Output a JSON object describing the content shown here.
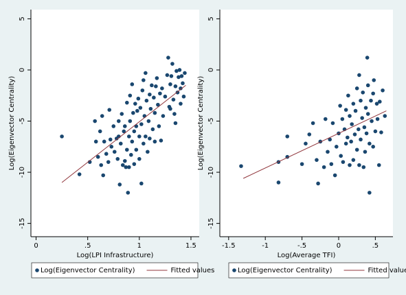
{
  "chart_data": [
    {
      "type": "scatter",
      "xlabel": "Log(LPI Infrastructure)",
      "ylabel": "Log(Eigenvector Centrality)",
      "xlim": [
        -0.05,
        1.58
      ],
      "ylim": [
        -16.3,
        5.9
      ],
      "xticks": [
        0,
        {
          "value": 0.5,
          "label": ".5"
        },
        1,
        1.5
      ],
      "yticks": [
        -15,
        -10,
        -5,
        0,
        5
      ],
      "series": [
        {
          "name": "Log(Eigenvector Centrality)",
          "color": "#1a476f",
          "x": [
            0.25,
            0.42,
            0.52,
            0.57,
            0.58,
            0.6,
            0.62,
            0.63,
            0.64,
            0.65,
            0.66,
            0.68,
            0.7,
            0.71,
            0.72,
            0.73,
            0.75,
            0.76,
            0.78,
            0.79,
            0.8,
            0.8,
            0.81,
            0.82,
            0.83,
            0.84,
            0.85,
            0.86,
            0.86,
            0.87,
            0.88,
            0.88,
            0.89,
            0.9,
            0.9,
            0.91,
            0.91,
            0.92,
            0.93,
            0.93,
            0.94,
            0.95,
            0.95,
            0.96,
            0.97,
            0.97,
            0.98,
            0.99,
            1.0,
            1.0,
            1.01,
            1.02,
            1.02,
            1.03,
            1.04,
            1.04,
            1.05,
            1.06,
            1.06,
            1.07,
            1.08,
            1.09,
            1.1,
            1.1,
            1.11,
            1.12,
            1.13,
            1.14,
            1.15,
            1.15,
            1.16,
            1.17,
            1.18,
            1.19,
            1.2,
            1.21,
            1.22,
            1.23,
            1.25,
            1.27,
            1.28,
            1.29,
            1.3,
            1.31,
            1.32,
            1.33,
            1.34,
            1.35,
            1.36,
            1.37,
            1.38,
            1.39,
            1.4,
            1.4,
            1.41,
            1.42,
            1.43,
            1.44,
            1.35,
            1.3
          ],
          "values": [
            -6.5,
            -10.2,
            -9,
            -5,
            -7,
            -8.5,
            -6,
            -9.3,
            -4.5,
            -10.3,
            -7,
            -8.2,
            -9,
            -3.9,
            -6.8,
            -7.5,
            -5.5,
            -8,
            -6.7,
            -8.7,
            -5,
            -6.5,
            -11.2,
            -7.2,
            -4.3,
            -9.3,
            -6,
            -8.9,
            -5.5,
            -9.5,
            -7.8,
            -3.2,
            -12,
            -6.5,
            -9.5,
            -5,
            -2.5,
            -8.3,
            -7,
            -1.4,
            -4.2,
            -6,
            -9.2,
            -3.3,
            -5.5,
            -7.8,
            -4,
            -2.8,
            -6.5,
            -8.7,
            -3.7,
            -11.1,
            -5.3,
            -2,
            -7.2,
            -1,
            -4.5,
            -0.3,
            -6.5,
            -3,
            -8,
            -5,
            -2.4,
            -6.7,
            -3.8,
            -1.5,
            -5.8,
            -2.7,
            -7,
            -4.2,
            -1.6,
            -0.8,
            -3.4,
            -5.5,
            -2.3,
            -6.9,
            -1.8,
            -4.5,
            -2.6,
            -0.5,
            1.2,
            -3.6,
            -1.4,
            -0.6,
            0.6,
            -2.9,
            -4.3,
            -1.6,
            -0.1,
            -2.2,
            -0.7,
            0,
            -1.8,
            -3.3,
            -0.6,
            -1.3,
            -2.6,
            -0.3,
            -5.2,
            -3.8
          ]
        },
        {
          "name": "Fitted values",
          "type": "line",
          "color": "#90353b",
          "x": [
            0.25,
            1.45
          ],
          "values": [
            -11,
            -1.5
          ]
        }
      ]
    },
    {
      "type": "scatter",
      "xlabel": "Log(Average TFI)",
      "ylabel": "Log(Eigenvector Centrality)",
      "xlim": [
        -1.62,
        0.74
      ],
      "ylim": [
        -16.3,
        5.9
      ],
      "xticks": [
        -1.5,
        -1,
        {
          "value": -0.5,
          "label": "-.5"
        },
        0,
        {
          "value": 0.5,
          "label": ".5"
        }
      ],
      "yticks": [
        -15,
        -10,
        -5,
        0,
        5
      ],
      "series": [
        {
          "name": "Log(Eigenvector Centrality)",
          "color": "#1a476f",
          "x": [
            -1.33,
            -0.82,
            -0.82,
            -0.7,
            -0.7,
            -0.5,
            -0.45,
            -0.4,
            -0.35,
            -0.3,
            -0.28,
            -0.25,
            -0.2,
            -0.18,
            -0.15,
            -0.12,
            -0.1,
            -0.08,
            -0.05,
            -0.03,
            0,
            0.02,
            0.03,
            0.05,
            0.06,
            0.08,
            0.1,
            0.1,
            0.12,
            0.13,
            0.15,
            0.15,
            0.17,
            0.18,
            0.2,
            0.2,
            0.22,
            0.23,
            0.25,
            0.25,
            0.27,
            0.28,
            0.28,
            0.3,
            0.3,
            0.32,
            0.33,
            0.35,
            0.36,
            0.37,
            0.38,
            0.39,
            0.4,
            0.4,
            0.42,
            0.42,
            0.44,
            0.45,
            0.47,
            0.48,
            0.5,
            0.52,
            0.53,
            0.55,
            0.56,
            0.58,
            0.6,
            0.63,
            0.34,
            0.47
          ],
          "values": [
            -9.4,
            -9,
            -11,
            -8.5,
            -6.5,
            -9.2,
            -7.2,
            -6.3,
            -5.2,
            -8.8,
            -11.1,
            -7,
            -9.5,
            -4.8,
            -8,
            -6.8,
            -9.2,
            -5.2,
            -10.3,
            -7.5,
            -6.2,
            -3.5,
            -8.4,
            -4.8,
            -9,
            -5.8,
            -3.9,
            -7.2,
            -6.6,
            -2.5,
            -4.5,
            -9.3,
            -7,
            -5.3,
            -3.3,
            -8.8,
            -6.3,
            -4,
            -1.8,
            -7.8,
            -5.8,
            -0.5,
            -9.3,
            -3,
            -6.8,
            -4.7,
            -2.2,
            -5.6,
            -8,
            -3.7,
            -6.2,
            1.2,
            -1.5,
            -4.3,
            -12,
            -7.2,
            -3,
            -5,
            -2.3,
            -1,
            -6,
            -3.3,
            -4.8,
            -9.3,
            -3.1,
            -6.1,
            -2,
            -4.5,
            -9.5,
            -7.5
          ]
        },
        {
          "name": "Fitted values",
          "type": "line",
          "color": "#90353b",
          "x": [
            -1.3,
            0.65
          ],
          "values": [
            -10.6,
            -4.0
          ]
        }
      ]
    }
  ]
}
